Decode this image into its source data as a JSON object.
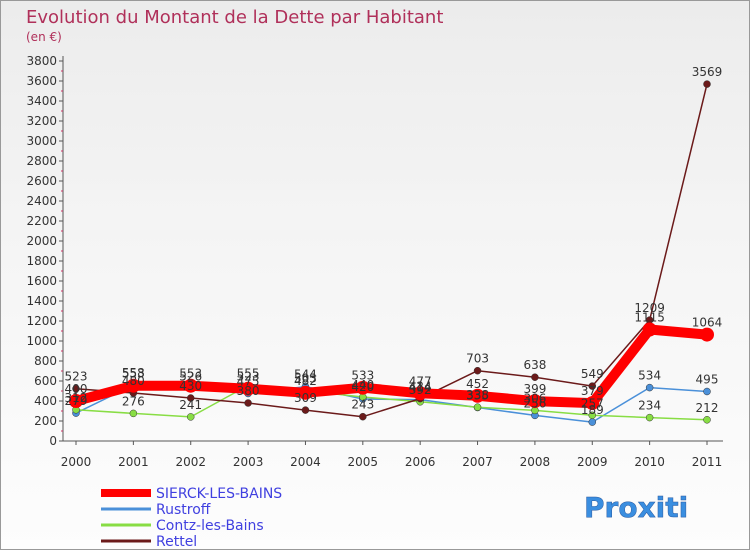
{
  "chart_data": {
    "type": "line",
    "title": "Evolution du Montant de la Dette par Habitant",
    "subtitle": "(en €)",
    "x": [
      "2000",
      "2001",
      "2002",
      "2003",
      "2004",
      "2005",
      "2006",
      "2007",
      "2008",
      "2009",
      "2010",
      "2011"
    ],
    "ylim": [
      0,
      3800
    ],
    "yticks": [
      0,
      200,
      400,
      600,
      800,
      1000,
      1200,
      1400,
      1600,
      1800,
      2000,
      2200,
      2400,
      2600,
      2800,
      3000,
      3200,
      3400,
      3600,
      3800
    ],
    "grid": false,
    "legend_position": "bottom-left",
    "series": [
      {
        "name": "SIERCK-LES-BAINS",
        "color": "#ff0000",
        "values": [
          400,
          553,
          553,
          523,
          482,
          533,
          477,
          452,
          399,
          379,
          1115,
          1064
        ],
        "labels": [
          "400",
          "553",
          "553",
          "523",
          "482",
          "533",
          "477",
          "452",
          "399",
          "379",
          "1115",
          "1064"
        ]
      },
      {
        "name": "Rustroff",
        "color": "#4a90d9",
        "values": [
          279,
          558,
          526,
          475,
          544,
          420,
          414,
          335,
          256,
          189,
          534,
          495
        ],
        "labels": [
          "279",
          "558",
          "526",
          "475",
          "544",
          "420",
          "414",
          "335",
          "256",
          "189",
          "534",
          "495"
        ]
      },
      {
        "name": "Contz-les-Bains",
        "color": "#88dd44",
        "values": [
          312,
          276,
          241,
          555,
          503,
          440,
          392,
          338,
          306,
          257,
          234,
          212
        ],
        "labels": [
          "312",
          "276",
          "241",
          "555",
          "503",
          "440",
          "392",
          "338",
          "306",
          "257",
          "234",
          "212"
        ]
      },
      {
        "name": "Rettel",
        "color": "#6b1a1a",
        "values": [
          523,
          480,
          430,
          380,
          309,
          243,
          424,
          703,
          638,
          549,
          1209,
          3569
        ],
        "labels": [
          "523",
          "480",
          "430",
          "380",
          "309",
          "243",
          "424",
          "703",
          "638",
          "549",
          "1209",
          "3569"
        ]
      }
    ]
  },
  "logo": {
    "text": "Proxiti"
  }
}
